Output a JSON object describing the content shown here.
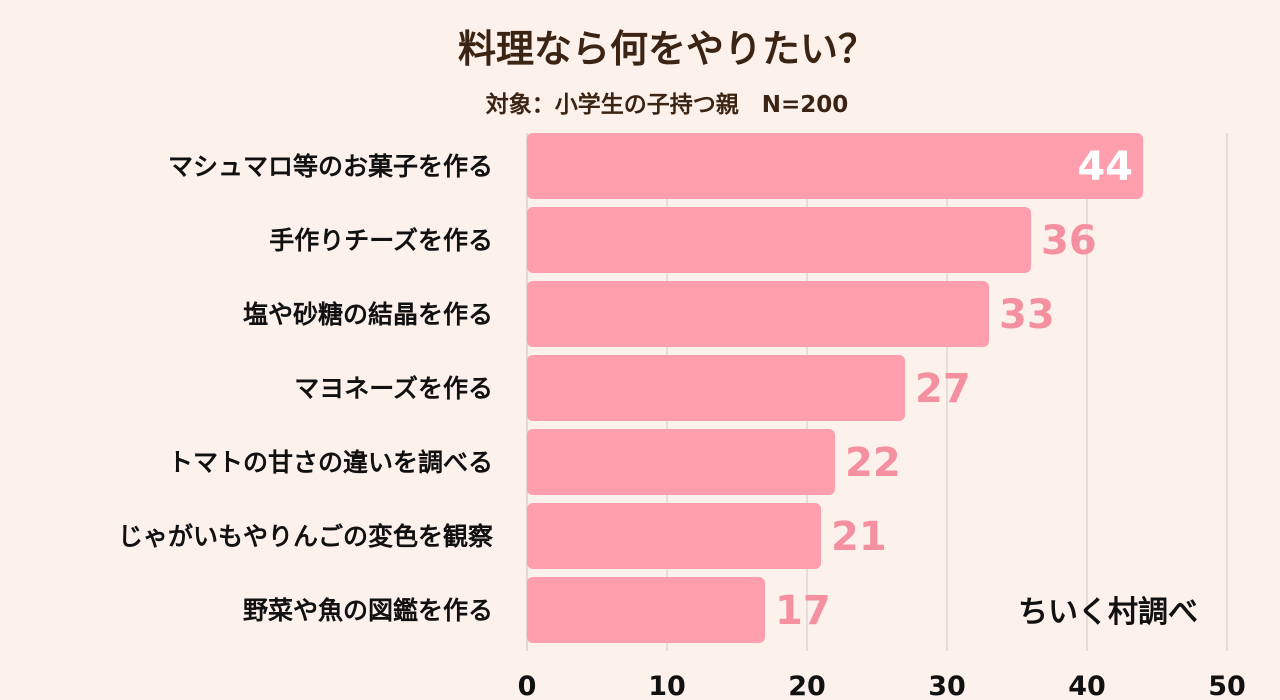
{
  "title": "料理なら何をやりたい？",
  "subtitle": "対象：小学生の子持つ親　N=200",
  "credit": "ちいく村調べ",
  "colors": {
    "background": "#fdf1ec",
    "bar": "#ff9fae",
    "value_outside": "#f490a0",
    "value_inside": "#ffffff",
    "grid": "#d9cfcd",
    "text": "#111111",
    "title": "#3b2414"
  },
  "chart_data": {
    "type": "bar",
    "orientation": "horizontal",
    "categories": [
      "マシュマロ等のお菓子を作る",
      "手作りチーズを作る",
      "塩や砂糖の結晶を作る",
      "マヨネーズを作る",
      "トマトの甘さの違いを調べる",
      "じゃがいもやりんごの変色を観察",
      "野菜や魚の図鑑を作る"
    ],
    "values": [
      44,
      36,
      33,
      27,
      22,
      21,
      17
    ],
    "xlim": [
      0,
      50
    ],
    "xticks": [
      0,
      10,
      20,
      30,
      40,
      50
    ],
    "grid": true
  }
}
